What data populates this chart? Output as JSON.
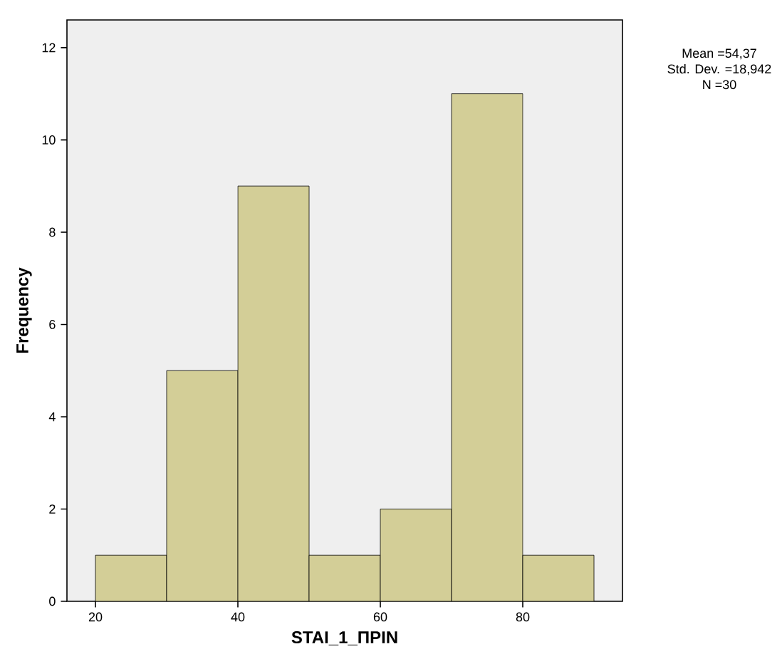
{
  "chart_data": {
    "type": "histogram",
    "xlabel": "STAI_1_ΠΡΙΝ",
    "ylabel": "Frequency",
    "bins": [
      20,
      30,
      40,
      50,
      60,
      70,
      80,
      90
    ],
    "values": [
      1,
      5,
      9,
      1,
      2,
      11,
      1
    ],
    "color": "#d3ce97",
    "xlim": [
      16,
      94
    ],
    "ylim": [
      0,
      12.6
    ],
    "xticks": [
      20,
      40,
      60,
      80
    ],
    "yticks": [
      0,
      2,
      4,
      6,
      8,
      10,
      12
    ],
    "annotations": [
      "Mean =54,37",
      "Std. Dev. =18,942",
      "N =30"
    ]
  }
}
